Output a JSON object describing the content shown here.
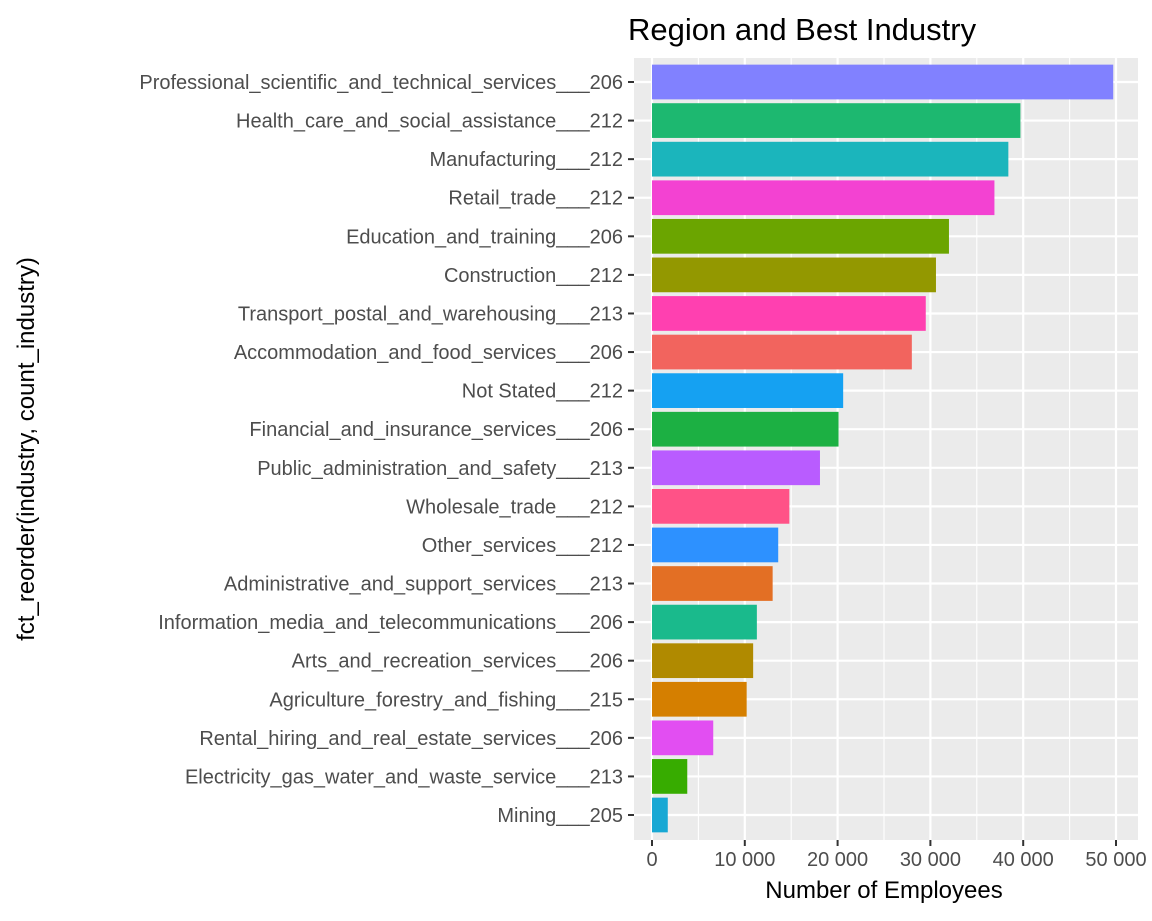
{
  "chart_data": {
    "type": "bar",
    "orientation": "horizontal",
    "title": "Region and Best Industry",
    "xlabel": "Number of Employees",
    "ylabel": "fct_reorder(industry, count_industry)",
    "xlim": [
      0,
      52000
    ],
    "x_ticks": [
      0,
      10000,
      20000,
      30000,
      40000,
      50000
    ],
    "x_tick_labels": [
      "0",
      "10 000",
      "20 000",
      "30 000",
      "40 000",
      "50 000"
    ],
    "grid": true,
    "legend": "none",
    "categories": [
      "Professional_scientific_and_technical_services___206",
      "Health_care_and_social_assistance___212",
      "Manufacturing___212",
      "Retail_trade___212",
      "Education_and_training___206",
      "Construction___212",
      "Transport_postal_and_warehousing___213",
      "Accommodation_and_food_services___206",
      "Not Stated___212",
      "Financial_and_insurance_services___206",
      "Public_administration_and_safety___213",
      "Wholesale_trade___212",
      "Other_services___212",
      "Administrative_and_support_services___213",
      "Information_media_and_telecommunications___206",
      "Arts_and_recreation_services___206",
      "Agriculture_forestry_and_fishing___215",
      "Rental_hiring_and_real_estate_services___206",
      "Electricity_gas_water_and_waste_service___213",
      "Mining___205"
    ],
    "values": [
      49700,
      39700,
      38400,
      36900,
      32000,
      30600,
      29500,
      28000,
      20600,
      20100,
      18100,
      14800,
      13600,
      13000,
      11300,
      10900,
      10200,
      6600,
      3800,
      1700
    ],
    "colors": [
      "#8181FF",
      "#1DB870",
      "#1BB5BC",
      "#F342D2",
      "#6BA500",
      "#939800",
      "#FF40B0",
      "#F2645E",
      "#15A1F2",
      "#1CB043",
      "#B95CFF",
      "#FF5287",
      "#2D91FF",
      "#E36F24",
      "#1ABA8C",
      "#B08A00",
      "#D57F00",
      "#E24EF2",
      "#37AC00",
      "#18A8D4"
    ]
  }
}
